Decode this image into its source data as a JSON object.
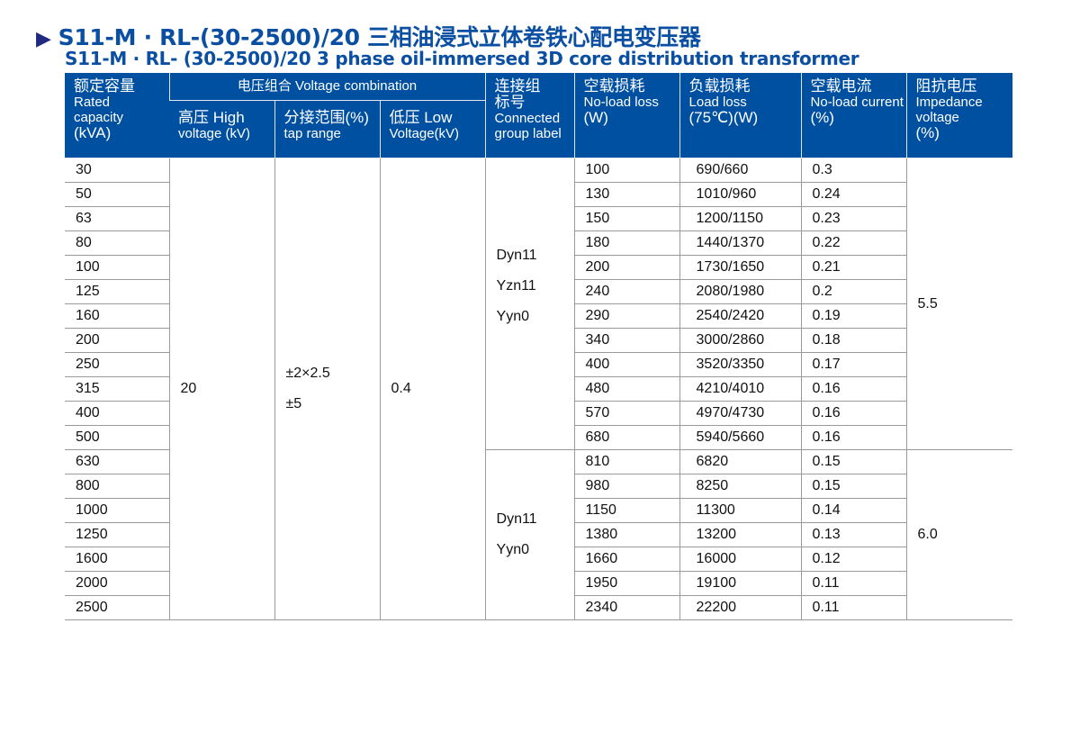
{
  "title": {
    "cn": "S11-M · RL-(30-2500)/20 三相油浸式立体卷铁心配电变压器",
    "en": "S11-M · RL- (30-2500)/20 3 phase oil-immersed 3D core distribution transformer",
    "arrow_icon": "triangle-right",
    "accent": "#0b4fa3"
  },
  "headers": {
    "capacity": {
      "cn": "额定容量",
      "en": "Rated capacity",
      "unit": "(kVA)"
    },
    "voltage_combo": "电压组合 Voltage combination",
    "high": {
      "cn": "高压 High",
      "en": "voltage (kV)"
    },
    "tap": {
      "cn": "分接范围(%)",
      "en": "tap range"
    },
    "low": {
      "cn": "低压 Low",
      "en": "Voltage(kV)"
    },
    "group": {
      "cn1": "连接组",
      "cn2": "标号",
      "en1": "Connected",
      "en2": "group label"
    },
    "noload_loss": {
      "cn": "空载损耗",
      "en": "No-load loss",
      "unit": "(W)"
    },
    "load_loss": {
      "cn": "负载损耗",
      "en": "Load loss",
      "unit": "(75℃)(W)"
    },
    "noload_current": {
      "cn": "空载电流",
      "en": "No-load current",
      "unit": "(%)"
    },
    "impedance": {
      "cn": "阻抗电压",
      "en": "Impedance",
      "en2": "voltage",
      "unit": "(%)"
    }
  },
  "merged": {
    "high": "20",
    "tap1": "±2×2.5",
    "tap2": "±5",
    "low": "0.4",
    "group_a": [
      "Dyn11",
      "Yzn11",
      "Yyn0"
    ],
    "group_b": [
      "Dyn11",
      "Yyn0"
    ],
    "imp_a": "5.5",
    "imp_b": "6.0"
  },
  "rows": [
    [
      "30",
      "100",
      "690/660",
      "0.3"
    ],
    [
      "50",
      "130",
      "1010/960",
      "0.24"
    ],
    [
      "63",
      "150",
      "1200/1150",
      "0.23"
    ],
    [
      "80",
      "180",
      "1440/1370",
      "0.22"
    ],
    [
      "100",
      "200",
      "1730/1650",
      "0.21"
    ],
    [
      "125",
      "240",
      "2080/1980",
      "0.2"
    ],
    [
      "160",
      "290",
      "2540/2420",
      "0.19"
    ],
    [
      "200",
      "340",
      "3000/2860",
      "0.18"
    ],
    [
      "250",
      "400",
      "3520/3350",
      "0.17"
    ],
    [
      "315",
      "480",
      "4210/4010",
      "0.16"
    ],
    [
      "400",
      "570",
      "4970/4730",
      "0.16"
    ],
    [
      "500",
      "680",
      "5940/5660",
      "0.16"
    ],
    [
      "630",
      "810",
      "6820",
      "0.15"
    ],
    [
      "800",
      "980",
      "8250",
      "0.15"
    ],
    [
      "1000",
      "1150",
      "11300",
      "0.14"
    ],
    [
      "1250",
      "1380",
      "13200",
      "0.13"
    ],
    [
      "1600",
      "1660",
      "16000",
      "0.12"
    ],
    [
      "2000",
      "1950",
      "19100",
      "0.11"
    ],
    [
      "2500",
      "2340",
      "22200",
      "0.11"
    ]
  ]
}
